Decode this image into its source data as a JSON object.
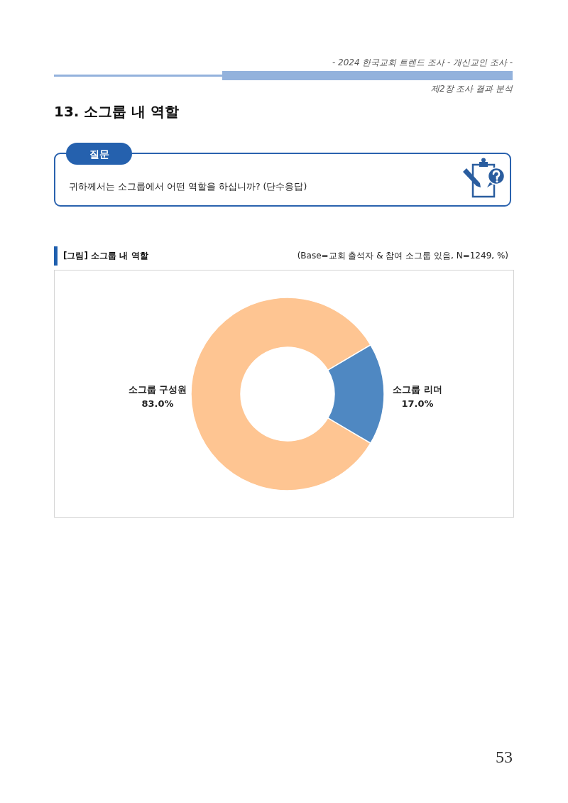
{
  "chart_data": {
    "type": "donut",
    "title": "[그림] 소그룹 내 역할",
    "subtitle": "(Base=교회 출석자 & 참여 소그룹 있음, N=1249, %)",
    "categories": [
      "소그룹 구성원",
      "소그룹 리더"
    ],
    "values": [
      83.0,
      17.0
    ],
    "colors": [
      "#fec592",
      "#4f88c2"
    ],
    "value_labels": [
      "83.0%",
      "17.0%"
    ],
    "annotations": [
      "- 2024 한국교회 트렌드 조사 - 개신교인 조사 -",
      "제2장 조사 결과 분석",
      "13. 소그룹 내 역할",
      "질문",
      "귀하께서는 소그룹에서 어떤 역할을 하십니까? (단수응답)",
      "53"
    ]
  }
}
